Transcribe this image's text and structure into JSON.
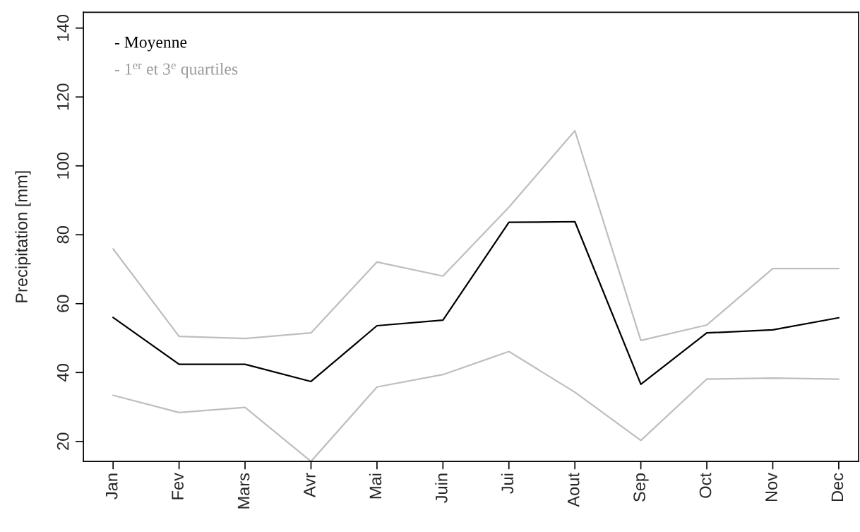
{
  "chart_data": {
    "type": "line",
    "ylabel": "Precipitation [mm]",
    "categories": [
      "Jan",
      "Fev",
      "Mars",
      "Avr",
      "Mai",
      "Juin",
      "Jui",
      "Aout",
      "Sep",
      "Oct",
      "Nov",
      "Dec"
    ],
    "series": [
      {
        "name": "- Moyenne",
        "color": "#000000",
        "values": [
          56.0,
          42.4,
          42.4,
          37.4,
          53.6,
          55.2,
          83.6,
          83.8,
          36.6,
          51.5,
          52.4,
          55.9
        ]
      },
      {
        "name": "- 1$^{er}$ et 3$^{e}$ quartiles",
        "color": "#bebebe",
        "values": [
          33.4,
          28.4,
          29.9,
          14.2,
          35.8,
          39.4,
          46.1,
          34.3,
          20.3,
          38.1,
          38.4,
          38.1
        ]
      },
      {
        "color": "#bebebe",
        "values": [
          75.9,
          50.5,
          49.9,
          51.5,
          72.1,
          68.0,
          88.0,
          110.2,
          49.3,
          53.8,
          70.2,
          70.2
        ]
      }
    ],
    "ylim": [
      14.2,
      144.6
    ],
    "yticks": [
      20,
      40,
      60,
      80,
      100,
      120,
      140
    ],
    "grid": false,
    "legend": "top left",
    "marker": "none",
    "line_style": "solid"
  }
}
